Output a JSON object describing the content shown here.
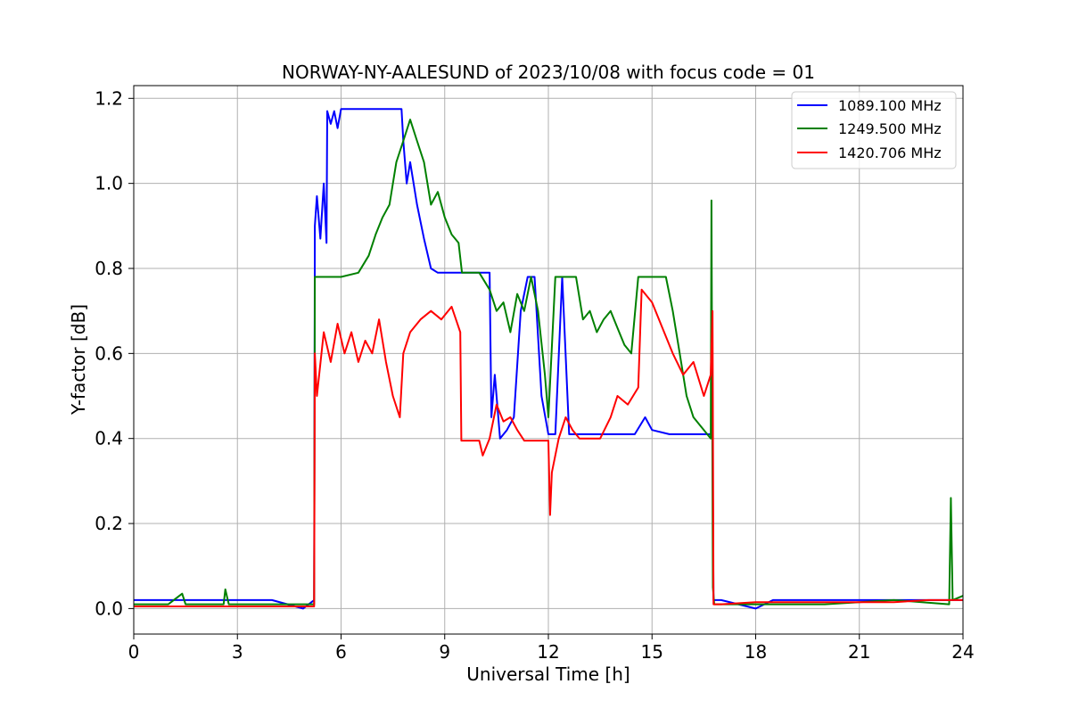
{
  "chart_data": {
    "type": "line",
    "title": "NORWAY-NY-AALESUND of 2023/10/08 with focus code = 01",
    "xlabel": "Universal Time [h]",
    "ylabel": "Y-factor [dB]",
    "xlim": [
      0,
      24
    ],
    "ylim": [
      -0.06,
      1.23
    ],
    "xticks": [
      0,
      3,
      6,
      9,
      12,
      15,
      18,
      21,
      24
    ],
    "xtick_labels": [
      "0",
      "3",
      "6",
      "9",
      "12",
      "15",
      "18",
      "21",
      "24"
    ],
    "yticks": [
      0.0,
      0.2,
      0.4,
      0.6,
      0.8,
      1.0,
      1.2
    ],
    "ytick_labels": [
      "0.0",
      "0.2",
      "0.4",
      "0.6",
      "0.8",
      "1.0",
      "1.2"
    ],
    "grid": true,
    "legend_position": "top-right",
    "series": [
      {
        "name": "1089.100 MHz",
        "color": "#0000ff",
        "points": [
          [
            0,
            0.02
          ],
          [
            1.0,
            0.02
          ],
          [
            2.0,
            0.02
          ],
          [
            3.0,
            0.02
          ],
          [
            4.0,
            0.02
          ],
          [
            4.9,
            0.0
          ],
          [
            5.22,
            0.02
          ],
          [
            5.24,
            0.9
          ],
          [
            5.3,
            0.97
          ],
          [
            5.4,
            0.87
          ],
          [
            5.5,
            1.0
          ],
          [
            5.58,
            0.86
          ],
          [
            5.6,
            1.17
          ],
          [
            5.7,
            1.14
          ],
          [
            5.8,
            1.17
          ],
          [
            5.9,
            1.13
          ],
          [
            6.0,
            1.175
          ],
          [
            7.0,
            1.175
          ],
          [
            7.75,
            1.175
          ],
          [
            7.8,
            1.1
          ],
          [
            7.9,
            1.0
          ],
          [
            8.0,
            1.05
          ],
          [
            8.2,
            0.95
          ],
          [
            8.4,
            0.87
          ],
          [
            8.6,
            0.8
          ],
          [
            8.8,
            0.79
          ],
          [
            9.5,
            0.79
          ],
          [
            10.2,
            0.79
          ],
          [
            10.3,
            0.79
          ],
          [
            10.35,
            0.45
          ],
          [
            10.45,
            0.55
          ],
          [
            10.6,
            0.4
          ],
          [
            10.8,
            0.42
          ],
          [
            11.0,
            0.45
          ],
          [
            11.2,
            0.7
          ],
          [
            11.4,
            0.78
          ],
          [
            11.6,
            0.78
          ],
          [
            11.8,
            0.5
          ],
          [
            12.0,
            0.41
          ],
          [
            12.2,
            0.41
          ],
          [
            12.4,
            0.78
          ],
          [
            12.6,
            0.41
          ],
          [
            13.5,
            0.41
          ],
          [
            14.5,
            0.41
          ],
          [
            14.8,
            0.45
          ],
          [
            15.0,
            0.42
          ],
          [
            15.5,
            0.41
          ],
          [
            16.5,
            0.41
          ],
          [
            16.75,
            0.41
          ],
          [
            16.78,
            0.02
          ],
          [
            17.0,
            0.02
          ],
          [
            18.0,
            0.0
          ],
          [
            18.5,
            0.02
          ],
          [
            20.0,
            0.02
          ],
          [
            22.0,
            0.02
          ],
          [
            24.0,
            0.02
          ]
        ]
      },
      {
        "name": "1249.500 MHz",
        "color": "#008000",
        "points": [
          [
            0,
            0.01
          ],
          [
            1.0,
            0.01
          ],
          [
            1.4,
            0.035
          ],
          [
            1.5,
            0.01
          ],
          [
            2.6,
            0.01
          ],
          [
            2.65,
            0.045
          ],
          [
            2.75,
            0.01
          ],
          [
            4.0,
            0.01
          ],
          [
            5.22,
            0.01
          ],
          [
            5.24,
            0.78
          ],
          [
            6.0,
            0.78
          ],
          [
            6.5,
            0.79
          ],
          [
            6.8,
            0.83
          ],
          [
            7.0,
            0.88
          ],
          [
            7.2,
            0.92
          ],
          [
            7.4,
            0.95
          ],
          [
            7.6,
            1.05
          ],
          [
            7.8,
            1.1
          ],
          [
            8.0,
            1.15
          ],
          [
            8.2,
            1.1
          ],
          [
            8.4,
            1.05
          ],
          [
            8.6,
            0.95
          ],
          [
            8.8,
            0.98
          ],
          [
            9.0,
            0.92
          ],
          [
            9.2,
            0.88
          ],
          [
            9.4,
            0.86
          ],
          [
            9.5,
            0.79
          ],
          [
            10.0,
            0.79
          ],
          [
            10.3,
            0.75
          ],
          [
            10.5,
            0.7
          ],
          [
            10.7,
            0.72
          ],
          [
            10.9,
            0.65
          ],
          [
            11.1,
            0.74
          ],
          [
            11.3,
            0.7
          ],
          [
            11.5,
            0.78
          ],
          [
            11.7,
            0.7
          ],
          [
            11.9,
            0.55
          ],
          [
            12.0,
            0.45
          ],
          [
            12.2,
            0.78
          ],
          [
            12.5,
            0.78
          ],
          [
            12.8,
            0.78
          ],
          [
            13.0,
            0.68
          ],
          [
            13.2,
            0.7
          ],
          [
            13.4,
            0.65
          ],
          [
            13.6,
            0.68
          ],
          [
            13.8,
            0.7
          ],
          [
            14.0,
            0.66
          ],
          [
            14.2,
            0.62
          ],
          [
            14.4,
            0.6
          ],
          [
            14.6,
            0.78
          ],
          [
            15.0,
            0.78
          ],
          [
            15.4,
            0.78
          ],
          [
            15.6,
            0.7
          ],
          [
            15.8,
            0.6
          ],
          [
            16.0,
            0.5
          ],
          [
            16.2,
            0.45
          ],
          [
            16.5,
            0.42
          ],
          [
            16.7,
            0.4
          ],
          [
            16.72,
            0.96
          ],
          [
            16.76,
            0.05
          ],
          [
            16.8,
            0.01
          ],
          [
            18.0,
            0.01
          ],
          [
            20.0,
            0.01
          ],
          [
            22.0,
            0.02
          ],
          [
            23.6,
            0.01
          ],
          [
            23.65,
            0.26
          ],
          [
            23.7,
            0.02
          ],
          [
            24.0,
            0.03
          ]
        ]
      },
      {
        "name": "1420.706 MHz",
        "color": "#ff0000",
        "points": [
          [
            0,
            0.005
          ],
          [
            2.0,
            0.005
          ],
          [
            4.0,
            0.005
          ],
          [
            5.22,
            0.005
          ],
          [
            5.24,
            0.6
          ],
          [
            5.3,
            0.5
          ],
          [
            5.5,
            0.65
          ],
          [
            5.7,
            0.58
          ],
          [
            5.9,
            0.67
          ],
          [
            6.1,
            0.6
          ],
          [
            6.3,
            0.65
          ],
          [
            6.5,
            0.58
          ],
          [
            6.7,
            0.63
          ],
          [
            6.9,
            0.6
          ],
          [
            7.1,
            0.68
          ],
          [
            7.3,
            0.58
          ],
          [
            7.5,
            0.5
          ],
          [
            7.7,
            0.45
          ],
          [
            7.8,
            0.6
          ],
          [
            8.0,
            0.65
          ],
          [
            8.3,
            0.68
          ],
          [
            8.6,
            0.7
          ],
          [
            8.9,
            0.68
          ],
          [
            9.2,
            0.71
          ],
          [
            9.45,
            0.65
          ],
          [
            9.48,
            0.395
          ],
          [
            10.0,
            0.395
          ],
          [
            10.1,
            0.36
          ],
          [
            10.3,
            0.4
          ],
          [
            10.5,
            0.48
          ],
          [
            10.7,
            0.44
          ],
          [
            10.9,
            0.45
          ],
          [
            11.1,
            0.42
          ],
          [
            11.3,
            0.395
          ],
          [
            12.0,
            0.395
          ],
          [
            12.05,
            0.22
          ],
          [
            12.1,
            0.32
          ],
          [
            12.3,
            0.4
          ],
          [
            12.5,
            0.45
          ],
          [
            12.7,
            0.42
          ],
          [
            12.9,
            0.4
          ],
          [
            13.5,
            0.4
          ],
          [
            13.8,
            0.45
          ],
          [
            14.0,
            0.5
          ],
          [
            14.3,
            0.48
          ],
          [
            14.6,
            0.52
          ],
          [
            14.7,
            0.75
          ],
          [
            15.0,
            0.72
          ],
          [
            15.3,
            0.66
          ],
          [
            15.6,
            0.6
          ],
          [
            15.9,
            0.55
          ],
          [
            16.2,
            0.58
          ],
          [
            16.5,
            0.5
          ],
          [
            16.7,
            0.55
          ],
          [
            16.75,
            0.7
          ],
          [
            16.78,
            0.01
          ],
          [
            17.0,
            0.01
          ],
          [
            18.0,
            0.015
          ],
          [
            20.0,
            0.015
          ],
          [
            22.0,
            0.015
          ],
          [
            23.0,
            0.02
          ],
          [
            24.0,
            0.02
          ]
        ]
      }
    ]
  }
}
